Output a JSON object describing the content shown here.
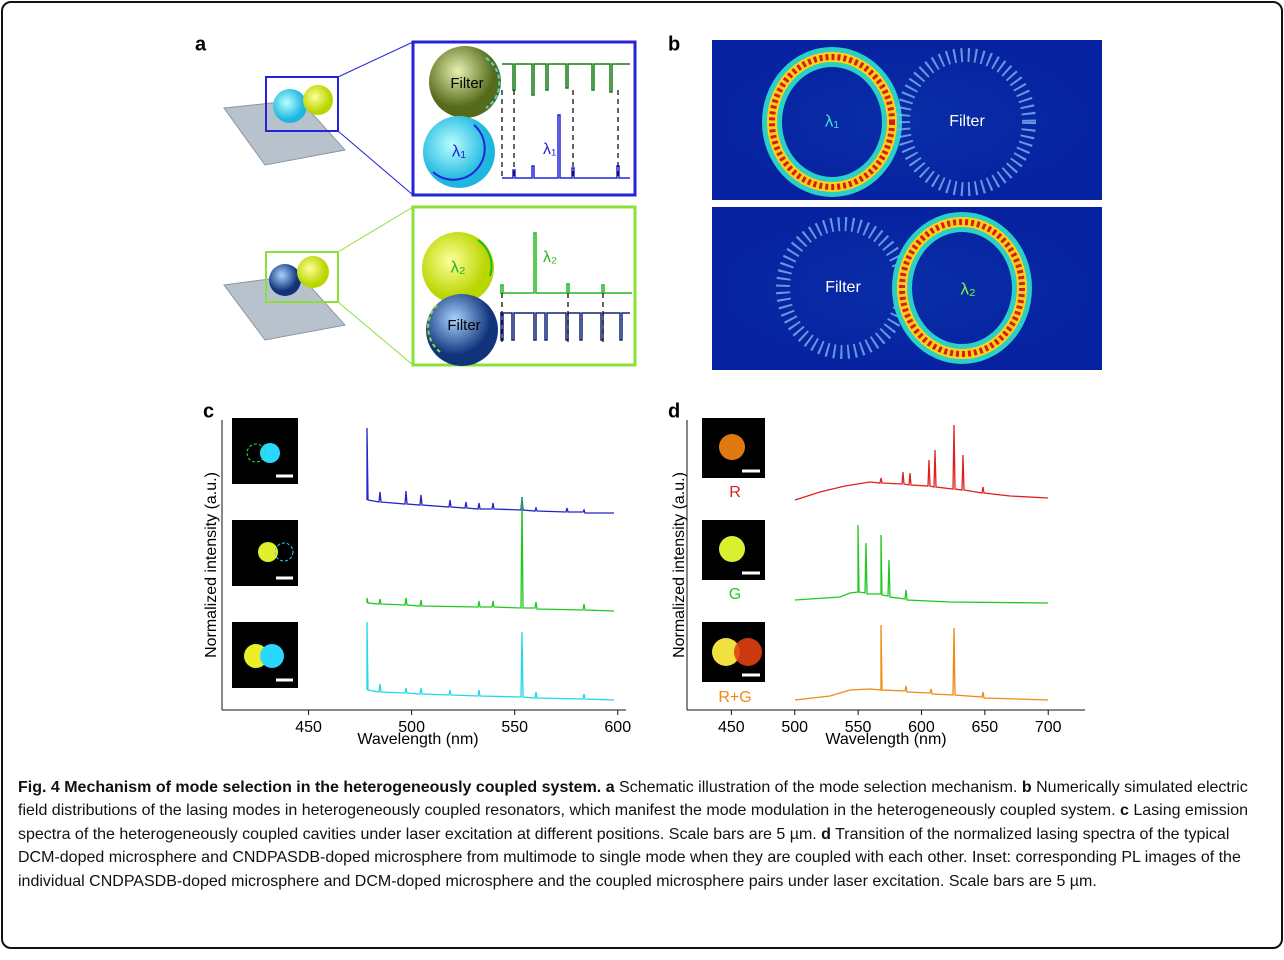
{
  "panel_a": {
    "label": "a",
    "top": {
      "sphere_filter": "Filter",
      "sphere_mode": "λ₁",
      "peak": "λ₁"
    },
    "bottom": {
      "sphere_mode": "λ₂",
      "peak": "λ₂",
      "sphere_filter": "Filter"
    }
  },
  "panel_b": {
    "label": "b",
    "top": {
      "mode": "λ₁",
      "filter": "Filter"
    },
    "bottom": {
      "filter": "Filter",
      "mode": "λ₂"
    }
  },
  "panel_c": {
    "label": "c",
    "ylabel": "Normalized intensity (a.u.)",
    "xlabel": "Wavelength (nm)",
    "xlim": [
      408,
      604
    ],
    "xticks": [
      450,
      500,
      550,
      600
    ]
  },
  "panel_d": {
    "label": "d",
    "ylabel": "Normalized intensity (a.u.)",
    "xlabel": "Wavelength (nm)",
    "xlim": [
      415,
      729
    ],
    "xticks": [
      450,
      500,
      550,
      600,
      650,
      700
    ],
    "insets": [
      "R",
      "G",
      "R+G"
    ]
  },
  "caption": [
    {
      "text": "Fig. 4 Mechanism of mode selection in the heterogeneously coupled system. ",
      "bold": true
    },
    {
      "text": "a",
      "bold": true
    },
    {
      "text": " Schematic illustration of the mode selection mechanism. ",
      "bold": false
    },
    {
      "text": "b",
      "bold": true
    },
    {
      "text": " Numerically simulated electric field distributions of the lasing modes in heterogeneously coupled resonators, which manifest the mode modulation in the heterogeneously coupled system. ",
      "bold": false
    },
    {
      "text": "c",
      "bold": true
    },
    {
      "text": " Lasing emission spectra of the heterogeneously coupled cavities under laser excitation at different positions. Scale bars are 5 µm. ",
      "bold": false
    },
    {
      "text": "d",
      "bold": true
    },
    {
      "text": " Transition of the normalized lasing spectra of the typical DCM-doped microsphere and CNDPASDB-doped microsphere from multimode to single mode when they are coupled with each other. Inset: corresponding PL images of the individual CNDPASDB-doped microsphere and DCM-doped microsphere and the coupled microsphere pairs under laser excitation. Scale bars are 5 µm.",
      "bold": false
    }
  ]
}
